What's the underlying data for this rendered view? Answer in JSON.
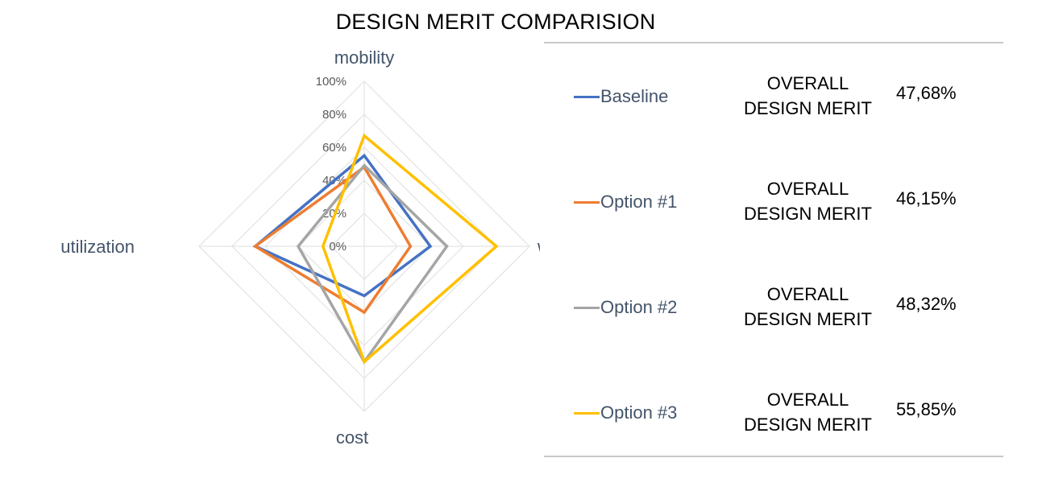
{
  "chart_data": {
    "type": "radar",
    "title": "DESIGN MERIT COMPARISION",
    "axes": [
      "mobility",
      "waiting time",
      "cost",
      "utilization"
    ],
    "ticks": [
      "0%",
      "20%",
      "40%",
      "60%",
      "80%",
      "100%"
    ],
    "range": [
      0,
      100
    ],
    "series": [
      {
        "name": "Baseline",
        "color": "#4472c4",
        "values": [
          55,
          40,
          30,
          66
        ],
        "overall_label": "OVERALL DESIGN MERIT",
        "overall_value": "47,68%"
      },
      {
        "name": "Option #1",
        "color": "#ed7d31",
        "values": [
          48,
          28,
          40,
          66
        ],
        "overall_label": "OVERALL DESIGN MERIT",
        "overall_value": "46,15%"
      },
      {
        "name": "Option #2",
        "color": "#a5a5a5",
        "values": [
          49,
          50,
          70,
          40
        ],
        "overall_label": "OVERALL DESIGN MERIT",
        "overall_value": "48,32%"
      },
      {
        "name": "Option #3",
        "color": "#ffc000",
        "values": [
          67,
          80,
          70,
          25
        ],
        "overall_label": "OVERALL DESIGN MERIT",
        "overall_value": "55,85%"
      }
    ]
  }
}
